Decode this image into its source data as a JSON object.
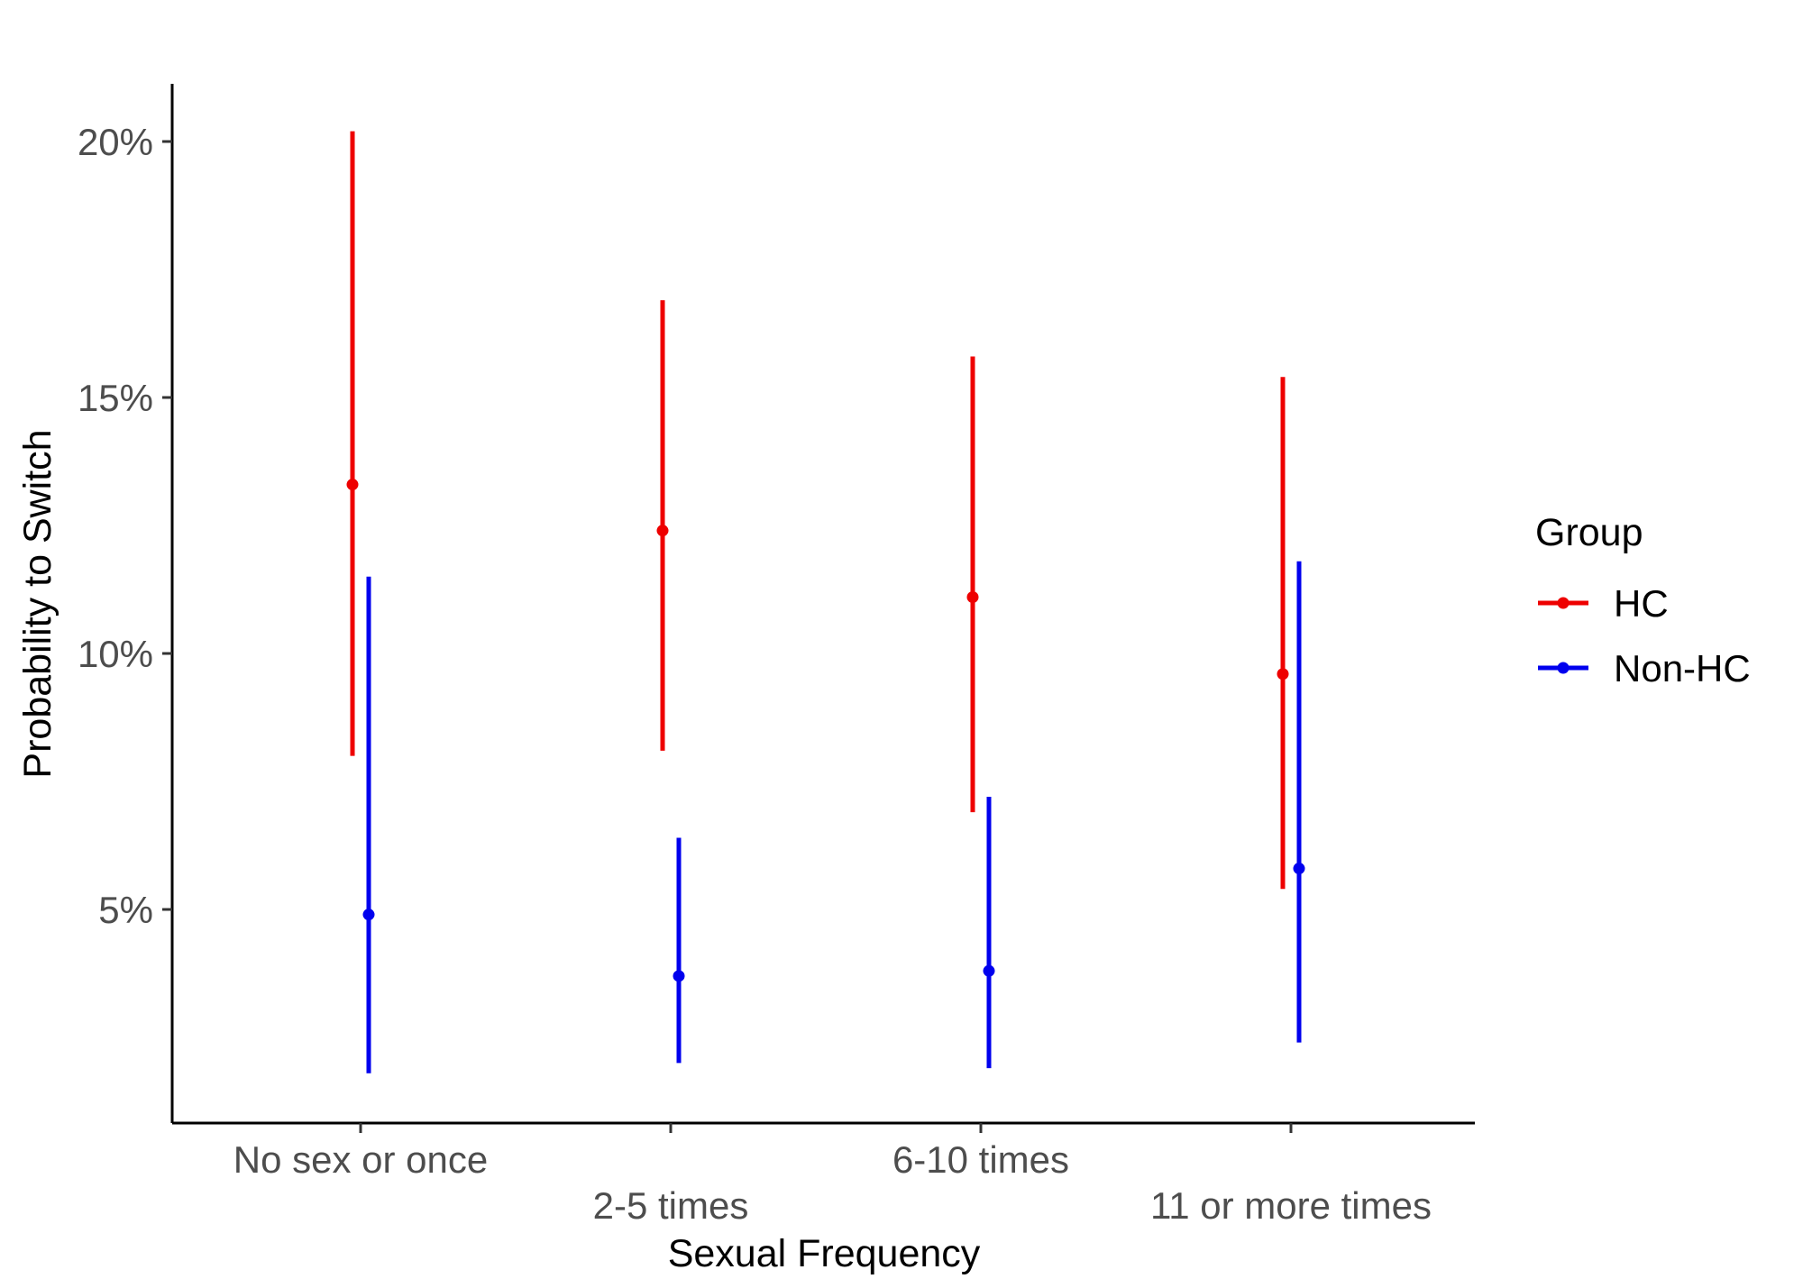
{
  "chart_data": {
    "type": "scatter",
    "subtype": "point-range",
    "xlabel": "Sexual Frequency",
    "ylabel": "Probability to Switch",
    "categories": [
      "No sex or once",
      "2-5 times",
      "6-10 times",
      "11 or more times"
    ],
    "y_ticks": [
      5,
      10,
      15,
      20
    ],
    "y_tick_labels": [
      "5%",
      "10%",
      "15%",
      "20%"
    ],
    "ylim": [
      1.0,
      21.1
    ],
    "grid": false,
    "legend": {
      "title": "Group",
      "position": "right"
    },
    "series": [
      {
        "name": "HC",
        "color": "#ee0000",
        "values": [
          13.3,
          12.4,
          11.1,
          9.6
        ],
        "lower": [
          8.0,
          8.1,
          6.9,
          5.4
        ],
        "upper": [
          20.2,
          16.9,
          15.8,
          15.4
        ]
      },
      {
        "name": "Non-HC",
        "color": "#0000ee",
        "values": [
          4.9,
          3.7,
          3.8,
          5.8
        ],
        "lower": [
          1.8,
          2.0,
          1.9,
          2.4
        ],
        "upper": [
          11.5,
          6.4,
          7.2,
          11.8
        ]
      }
    ]
  }
}
